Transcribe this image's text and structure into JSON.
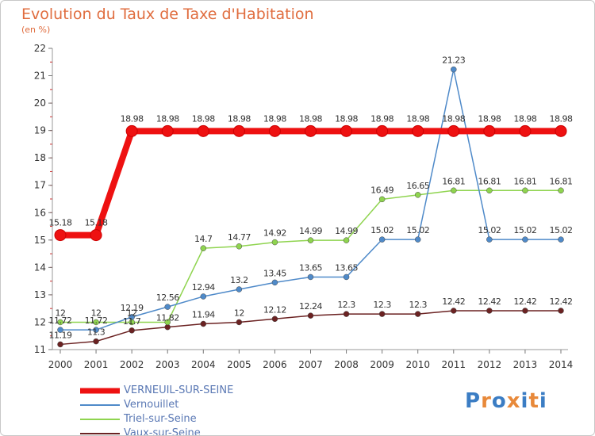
{
  "header": {
    "title": "Evolution du Taux de Taxe d'Habitation",
    "subtitle": "(en %)"
  },
  "logo": {
    "text": "Proxiti",
    "colors": [
      "#3b7dc4",
      "#e8893a",
      "#3b7dc4",
      "#e8893a",
      "#3b7dc4",
      "#e8893a",
      "#3b7dc4"
    ]
  },
  "chart_data": {
    "type": "line",
    "x": [
      "2000",
      "2001",
      "2002",
      "2003",
      "2004",
      "2005",
      "2006",
      "2007",
      "2008",
      "2009",
      "2010",
      "2011",
      "2012",
      "2013",
      "2014"
    ],
    "ylim": [
      11,
      22
    ],
    "yticks": [
      "11",
      "12",
      "13",
      "14",
      "15",
      "16",
      "17",
      "18",
      "19",
      "20",
      "21",
      "22"
    ],
    "grid": false,
    "legend_position": "bottom-left",
    "series": [
      {
        "name": "VERNEUIL-SUR-SEINE",
        "color": "#ee1111",
        "values": [
          15.18,
          15.18,
          18.98,
          18.98,
          18.98,
          18.98,
          18.98,
          18.98,
          18.98,
          18.98,
          18.98,
          18.98,
          18.98,
          18.98,
          18.98
        ],
        "labels": [
          "15.18",
          "15.18",
          "18.98",
          "18.98",
          "18.98",
          "18.98",
          "18.98",
          "18.98",
          "18.98",
          "18.98",
          "18.98",
          "18.98",
          "18.98",
          "18.98",
          "18.98"
        ]
      },
      {
        "name": "Vernouillet",
        "color": "#4f8ac9",
        "values": [
          11.72,
          11.72,
          12.19,
          12.56,
          12.94,
          13.2,
          13.45,
          13.65,
          13.65,
          15.02,
          15.02,
          21.23,
          15.02,
          15.02,
          15.02
        ],
        "labels": [
          "11.72",
          "11.72",
          "12.19",
          "12.56",
          "12.94",
          "13.2",
          "13.45",
          "13.65",
          "13.65",
          "15.02",
          "15.02",
          "21.23",
          "15.02",
          "15.02",
          "15.02"
        ]
      },
      {
        "name": "Triel-sur-Seine",
        "color": "#8fd44f",
        "values": [
          12,
          12,
          12,
          12,
          14.7,
          14.77,
          14.92,
          14.99,
          14.99,
          16.49,
          16.65,
          16.81,
          16.81,
          16.81,
          16.81
        ],
        "labels": [
          "12",
          "12",
          "12",
          "",
          "14.7",
          "14.77",
          "14.92",
          "14.99",
          "14.99",
          "16.49",
          "16.65",
          "16.81",
          "16.81",
          "16.81",
          "16.81"
        ]
      },
      {
        "name": "Vaux-sur-Seine",
        "color": "#6b2222",
        "values": [
          11.19,
          11.3,
          11.7,
          11.82,
          11.94,
          12,
          12.12,
          12.24,
          12.3,
          12.3,
          12.3,
          12.42,
          12.42,
          12.42,
          12.42
        ],
        "labels": [
          "11.19",
          "11.3",
          "11.7",
          "11.82",
          "11.94",
          "12",
          "12.12",
          "12.24",
          "12.3",
          "12.3",
          "12.3",
          "12.42",
          "12.42",
          "12.42",
          "12.42"
        ]
      }
    ]
  }
}
